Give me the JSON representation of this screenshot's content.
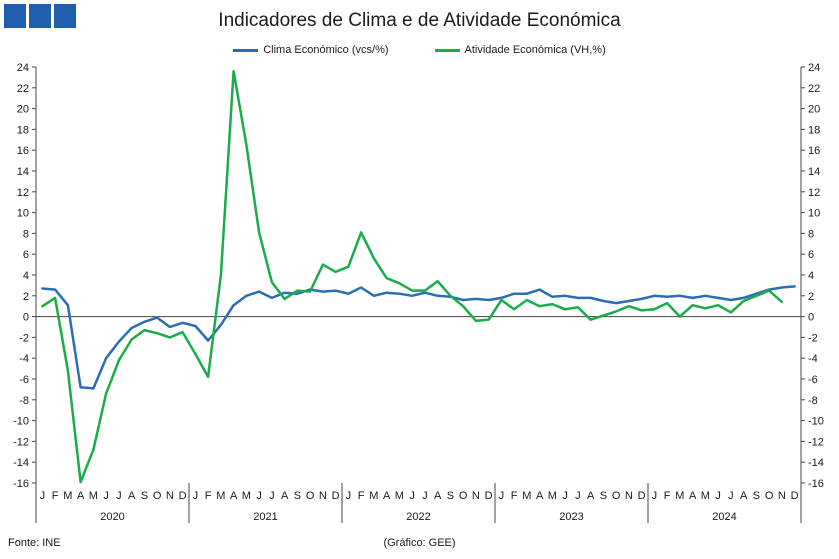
{
  "colors": {
    "clima": "#2a6db5",
    "atividade": "#1aab4b",
    "axis": "#444444",
    "logo": "#1f5fae"
  },
  "chart_data": {
    "type": "line",
    "title": "Indicadores de Clima e de Atividade Económica",
    "ylim": [
      -16,
      24
    ],
    "yticks": [
      -16,
      -14,
      -12,
      -10,
      -8,
      -6,
      -4,
      -2,
      0,
      2,
      4,
      6,
      8,
      10,
      12,
      14,
      16,
      18,
      20,
      22,
      24
    ],
    "y2ticks": [
      -16,
      -14,
      -12,
      -10,
      -8,
      -6,
      -4,
      -2,
      0,
      2,
      4,
      6,
      8,
      10,
      12,
      14,
      16,
      18,
      20,
      22,
      24
    ],
    "grid": false,
    "legend_position": "top-center",
    "month_labels": [
      "J",
      "F",
      "M",
      "A",
      "M",
      "J",
      "J",
      "A",
      "S",
      "O",
      "N",
      "D"
    ],
    "years": [
      "2020",
      "2021",
      "2022",
      "2023",
      "2024"
    ],
    "series": [
      {
        "name": "Clima Económico (vcs/%)",
        "color_key": "clima",
        "values": [
          2.7,
          2.6,
          1.1,
          -6.8,
          -6.9,
          -4.0,
          -2.4,
          -1.1,
          -0.5,
          -0.1,
          -1.0,
          -0.6,
          -0.9,
          -2.3,
          -0.8,
          1.1,
          2.0,
          2.4,
          1.8,
          2.3,
          2.2,
          2.6,
          2.4,
          2.5,
          2.2,
          2.8,
          2.0,
          2.3,
          2.2,
          2.0,
          2.3,
          2.0,
          1.9,
          1.6,
          1.7,
          1.6,
          1.8,
          2.2,
          2.2,
          2.6,
          1.9,
          2.0,
          1.8,
          1.8,
          1.5,
          1.3,
          1.5,
          1.7,
          2.0,
          1.9,
          2.0,
          1.8,
          2.0,
          1.8,
          1.6,
          1.8,
          2.2,
          2.6,
          2.8,
          2.9
        ]
      },
      {
        "name": "Atividade Económica (VH,%)",
        "color_key": "atividade",
        "values": [
          1.0,
          1.8,
          -5.2,
          -15.9,
          -12.8,
          -7.4,
          -4.2,
          -2.2,
          -1.3,
          -1.6,
          -2.0,
          -1.5,
          -3.6,
          -5.8,
          4.0,
          23.6,
          16.5,
          8.1,
          3.3,
          1.7,
          2.5,
          2.4,
          5.0,
          4.3,
          4.8,
          8.1,
          5.6,
          3.7,
          3.2,
          2.5,
          2.5,
          3.4,
          2.0,
          1.0,
          -0.4,
          -0.3,
          1.6,
          0.7,
          1.6,
          1.0,
          1.2,
          0.7,
          0.9,
          -0.3,
          0.1,
          0.5,
          1.0,
          0.6,
          0.7,
          1.3,
          0.0,
          1.1,
          0.8,
          1.1,
          0.4,
          1.5,
          2.0,
          2.5,
          1.4
        ]
      }
    ]
  },
  "footer": {
    "source": "Fonte: INE",
    "credit": "(Gráfico: GEE)"
  }
}
